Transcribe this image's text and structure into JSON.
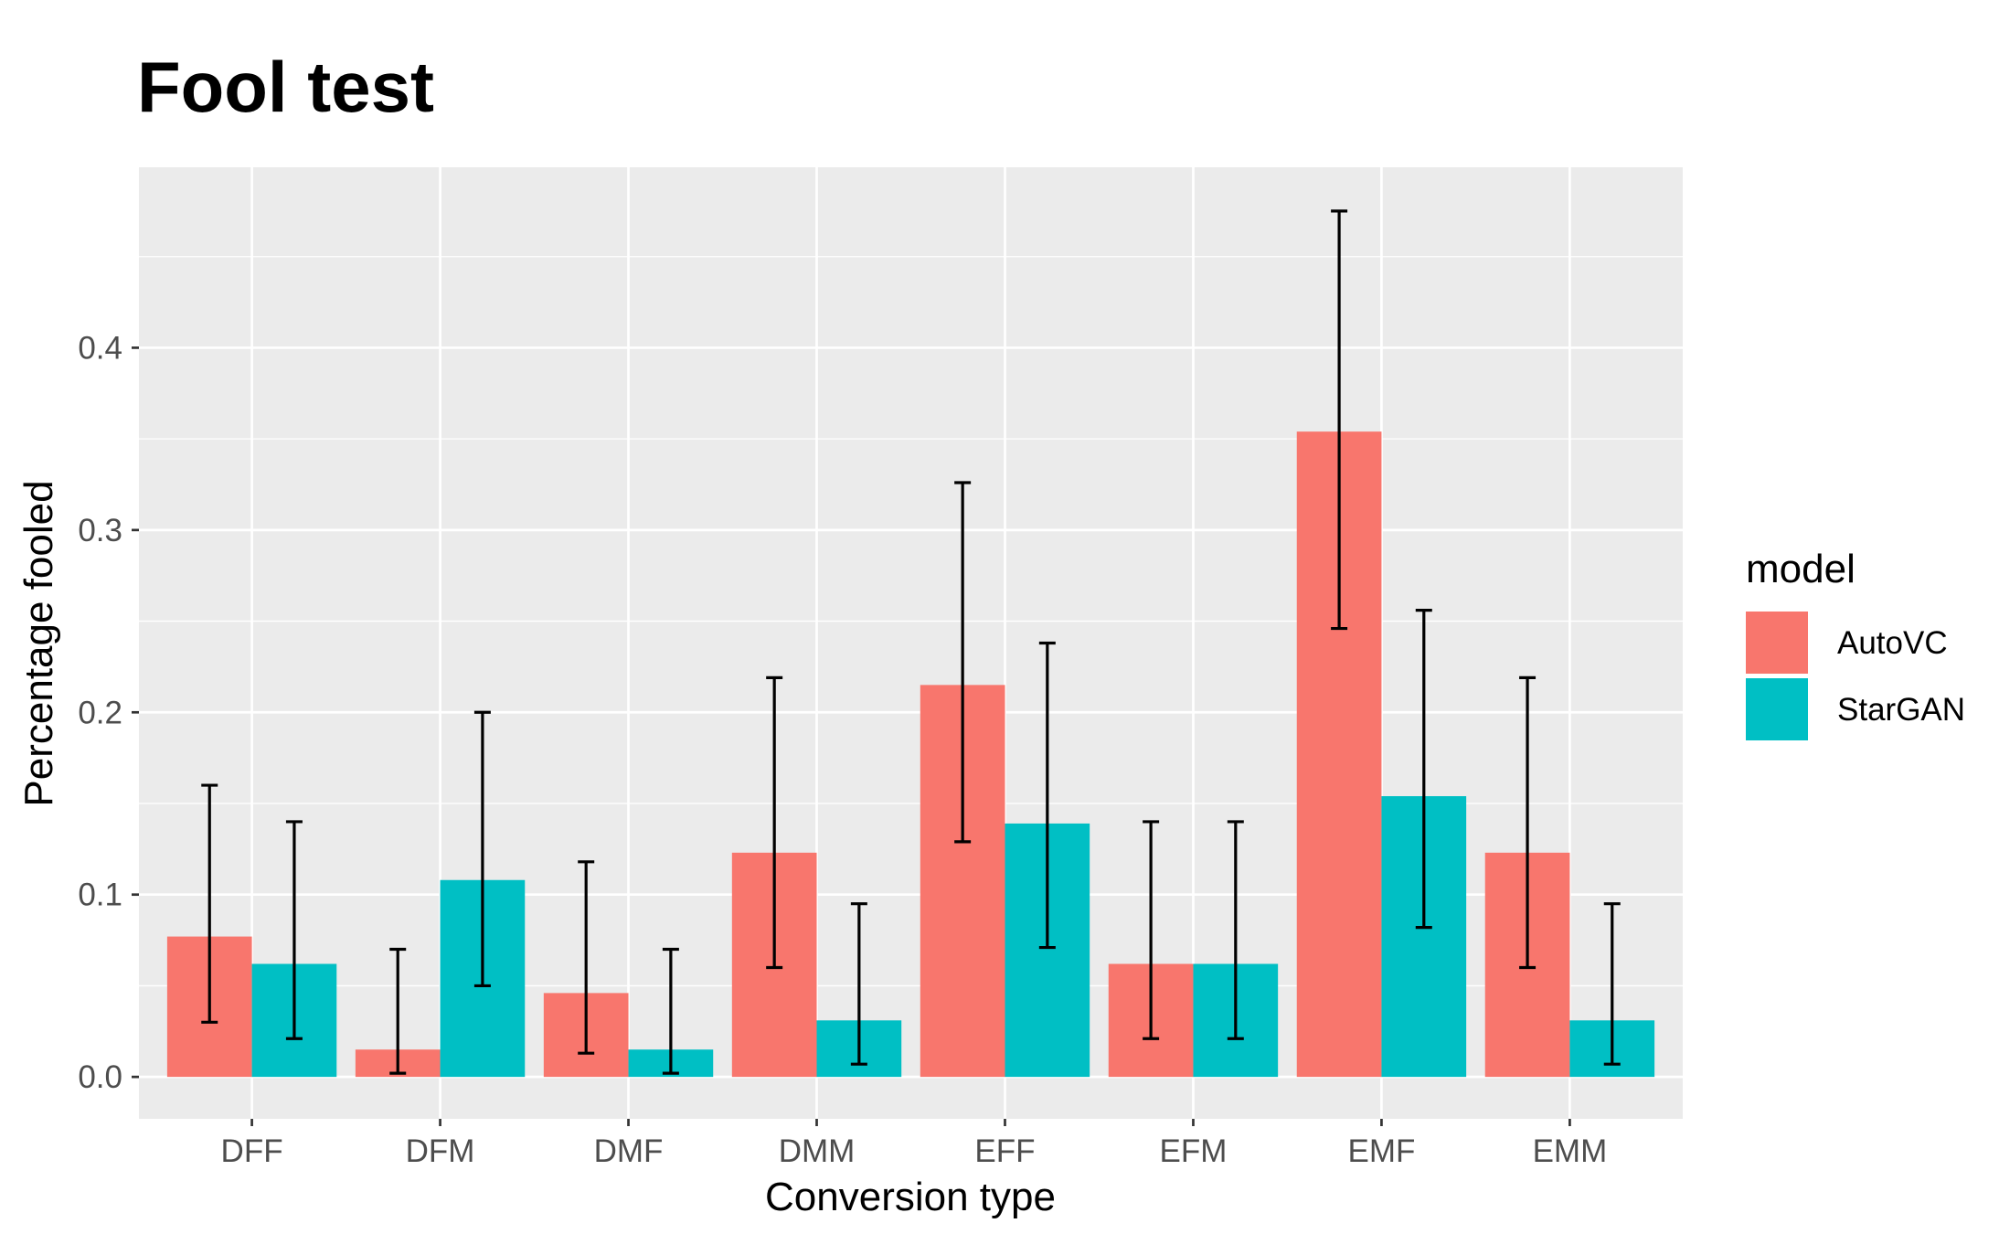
{
  "chart_data": {
    "type": "bar",
    "title": "Fool test",
    "xlabel": "Conversion type",
    "ylabel": "Percentage fooled",
    "categories": [
      "DFF",
      "DFM",
      "DMF",
      "DMM",
      "EFF",
      "EFM",
      "EMF",
      "EMM"
    ],
    "ylim": [
      -0.023,
      0.499
    ],
    "y_ticks": [
      0.0,
      0.1,
      0.2,
      0.3,
      0.4
    ],
    "y_tick_labels": [
      "0.0",
      "0.1",
      "0.2",
      "0.3",
      "0.4"
    ],
    "grid": true,
    "legend": {
      "title": "model",
      "position": "right"
    },
    "series": [
      {
        "name": "AutoVC",
        "color": "#F8766D",
        "values": [
          0.077,
          0.015,
          0.046,
          0.123,
          0.215,
          0.062,
          0.354,
          0.123
        ],
        "error_low": [
          0.03,
          0.002,
          0.013,
          0.06,
          0.129,
          0.021,
          0.246,
          0.06
        ],
        "error_high": [
          0.16,
          0.07,
          0.118,
          0.219,
          0.326,
          0.14,
          0.475,
          0.219
        ]
      },
      {
        "name": "StarGAN",
        "color": "#00BFC4",
        "values": [
          0.062,
          0.108,
          0.015,
          0.031,
          0.139,
          0.062,
          0.154,
          0.031
        ],
        "error_low": [
          0.021,
          0.05,
          0.002,
          0.007,
          0.071,
          0.021,
          0.082,
          0.007
        ],
        "error_high": [
          0.14,
          0.2,
          0.07,
          0.095,
          0.238,
          0.14,
          0.256,
          0.095
        ]
      }
    ]
  }
}
